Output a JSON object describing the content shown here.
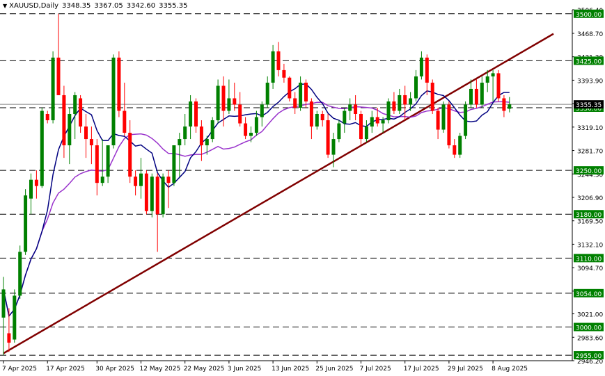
{
  "header": {
    "symbol": "XAUUSD,Daily",
    "open": "3348.35",
    "high": "3367.05",
    "low": "3342.60",
    "close": "3355.35"
  },
  "colors": {
    "bull": "#008000",
    "bear": "#ff0000",
    "ma_fast": "#000080",
    "ma_slow": "#9932cc",
    "trendline": "#800000",
    "level_line": "#000000",
    "level_box": "#008000"
  },
  "chart_data": {
    "type": "candlestick",
    "symbol": "XAUUSD",
    "timeframe": "Daily",
    "ylim": [
      2946.2,
      3506.4
    ],
    "y_ticks": [
      "3506.40",
      "3468.70",
      "3431.30",
      "3393.90",
      "3356.50",
      "3319.10",
      "3281.70",
      "3244.30",
      "3206.90",
      "3169.50",
      "3132.10",
      "3094.70",
      "3057.30",
      "3021.00",
      "2983.60",
      "2946.20"
    ],
    "x_ticks": [
      {
        "label": "7 Apr 2025",
        "index": 0
      },
      {
        "label": "17 Apr 2025",
        "index": 8
      },
      {
        "label": "30 Apr 2025",
        "index": 17
      },
      {
        "label": "12 May 2025",
        "index": 25
      },
      {
        "label": "22 May 2025",
        "index": 33
      },
      {
        "label": "3 Jun 2025",
        "index": 41
      },
      {
        "label": "13 Jun 2025",
        "index": 49
      },
      {
        "label": "25 Jun 2025",
        "index": 57
      },
      {
        "label": "7 Jul 2025",
        "index": 65
      },
      {
        "label": "17 Jul 2025",
        "index": 73
      },
      {
        "label": "29 Jul 2025",
        "index": 81
      },
      {
        "label": "8 Aug 2025",
        "index": 89
      }
    ],
    "horizontal_levels": [
      "3500.00",
      "3425.00",
      "3350.00",
      "3250.00",
      "3180.00",
      "3110.00",
      "3054.00",
      "3000.00",
      "2955.00"
    ],
    "current_price": "3355.35",
    "trendline": {
      "from": {
        "index": 0,
        "price": 2958
      },
      "to": {
        "index": 100,
        "price": 3468
      }
    },
    "candles": [
      [
        3015,
        3080,
        2955,
        3060
      ],
      [
        2990,
        3030,
        2960,
        2975
      ],
      [
        2980,
        3060,
        2975,
        3050
      ],
      [
        3050,
        3130,
        3045,
        3120
      ],
      [
        3120,
        3220,
        3115,
        3210
      ],
      [
        3205,
        3245,
        3180,
        3235
      ],
      [
        3235,
        3250,
        3205,
        3225
      ],
      [
        3225,
        3350,
        3222,
        3345
      ],
      [
        3340,
        3345,
        3325,
        3330
      ],
      [
        3330,
        3440,
        3325,
        3430
      ],
      [
        3430,
        3500,
        3370,
        3370
      ],
      [
        3370,
        3385,
        3270,
        3290
      ],
      [
        3290,
        3350,
        3260,
        3340
      ],
      [
        3340,
        3375,
        3300,
        3370
      ],
      [
        3365,
        3370,
        3310,
        3320
      ],
      [
        3320,
        3340,
        3270,
        3300
      ],
      [
        3300,
        3320,
        3260,
        3290
      ],
      [
        3290,
        3300,
        3210,
        3230
      ],
      [
        3230,
        3300,
        3225,
        3240
      ],
      [
        3240,
        3290,
        3230,
        3290
      ],
      [
        3290,
        3435,
        3285,
        3430
      ],
      [
        3430,
        3440,
        3335,
        3345
      ],
      [
        3345,
        3390,
        3305,
        3310
      ],
      [
        3310,
        3330,
        3230,
        3240
      ],
      [
        3240,
        3250,
        3210,
        3225
      ],
      [
        3225,
        3270,
        3205,
        3245
      ],
      [
        3245,
        3250,
        3180,
        3185
      ],
      [
        3185,
        3245,
        3175,
        3240
      ],
      [
        3240,
        3245,
        3120,
        3180
      ],
      [
        3180,
        3245,
        3175,
        3240
      ],
      [
        3240,
        3250,
        3190,
        3230
      ],
      [
        3230,
        3290,
        3225,
        3290
      ],
      [
        3290,
        3310,
        3240,
        3300
      ],
      [
        3300,
        3340,
        3290,
        3320
      ],
      [
        3320,
        3370,
        3300,
        3360
      ],
      [
        3360,
        3365,
        3310,
        3320
      ],
      [
        3320,
        3330,
        3265,
        3290
      ],
      [
        3290,
        3305,
        3275,
        3300
      ],
      [
        3300,
        3335,
        3295,
        3330
      ],
      [
        3330,
        3395,
        3325,
        3385
      ],
      [
        3385,
        3400,
        3320,
        3345
      ],
      [
        3345,
        3395,
        3340,
        3365
      ],
      [
        3365,
        3390,
        3345,
        3355
      ],
      [
        3355,
        3375,
        3320,
        3325
      ],
      [
        3325,
        3335,
        3300,
        3305
      ],
      [
        3305,
        3320,
        3295,
        3310
      ],
      [
        3310,
        3345,
        3305,
        3335
      ],
      [
        3335,
        3360,
        3320,
        3355
      ],
      [
        3355,
        3400,
        3350,
        3390
      ],
      [
        3390,
        3450,
        3380,
        3440
      ],
      [
        3440,
        3455,
        3400,
        3410
      ],
      [
        3410,
        3420,
        3390,
        3398
      ],
      [
        3398,
        3400,
        3360,
        3365
      ],
      [
        3365,
        3375,
        3340,
        3350
      ],
      [
        3350,
        3400,
        3345,
        3390
      ],
      [
        3390,
        3395,
        3350,
        3360
      ],
      [
        3360,
        3365,
        3300,
        3320
      ],
      [
        3320,
        3345,
        3315,
        3340
      ],
      [
        3340,
        3345,
        3320,
        3330
      ],
      [
        3330,
        3340,
        3270,
        3275
      ],
      [
        3275,
        3310,
        3255,
        3300
      ],
      [
        3300,
        3330,
        3295,
        3325
      ],
      [
        3325,
        3350,
        3310,
        3345
      ],
      [
        3345,
        3365,
        3330,
        3355
      ],
      [
        3355,
        3370,
        3330,
        3340
      ],
      [
        3340,
        3345,
        3290,
        3300
      ],
      [
        3300,
        3330,
        3295,
        3320
      ],
      [
        3320,
        3345,
        3310,
        3335
      ],
      [
        3335,
        3350,
        3320,
        3325
      ],
      [
        3325,
        3335,
        3310,
        3330
      ],
      [
        3330,
        3365,
        3325,
        3360
      ],
      [
        3360,
        3375,
        3340,
        3345
      ],
      [
        3345,
        3380,
        3340,
        3370
      ],
      [
        3370,
        3385,
        3330,
        3355
      ],
      [
        3355,
        3375,
        3345,
        3365
      ],
      [
        3365,
        3410,
        3360,
        3400
      ],
      [
        3400,
        3440,
        3395,
        3430
      ],
      [
        3430,
        3435,
        3370,
        3390
      ],
      [
        3390,
        3395,
        3340,
        3345
      ],
      [
        3345,
        3350,
        3300,
        3315
      ],
      [
        3315,
        3360,
        3310,
        3355
      ],
      [
        3355,
        3360,
        3285,
        3290
      ],
      [
        3290,
        3300,
        3270,
        3275
      ],
      [
        3275,
        3310,
        3270,
        3305
      ],
      [
        3305,
        3360,
        3300,
        3355
      ],
      [
        3355,
        3395,
        3350,
        3380
      ],
      [
        3380,
        3395,
        3350,
        3355
      ],
      [
        3355,
        3400,
        3350,
        3390
      ],
      [
        3390,
        3410,
        3375,
        3400
      ],
      [
        3400,
        3410,
        3360,
        3405
      ],
      [
        3405,
        3410,
        3360,
        3365
      ],
      [
        3365,
        3370,
        3335,
        3345
      ],
      [
        3348.35,
        3367.05,
        3342.6,
        3355.35
      ]
    ],
    "ma_fast_period_label": "",
    "ma_slow_period_label": ""
  }
}
